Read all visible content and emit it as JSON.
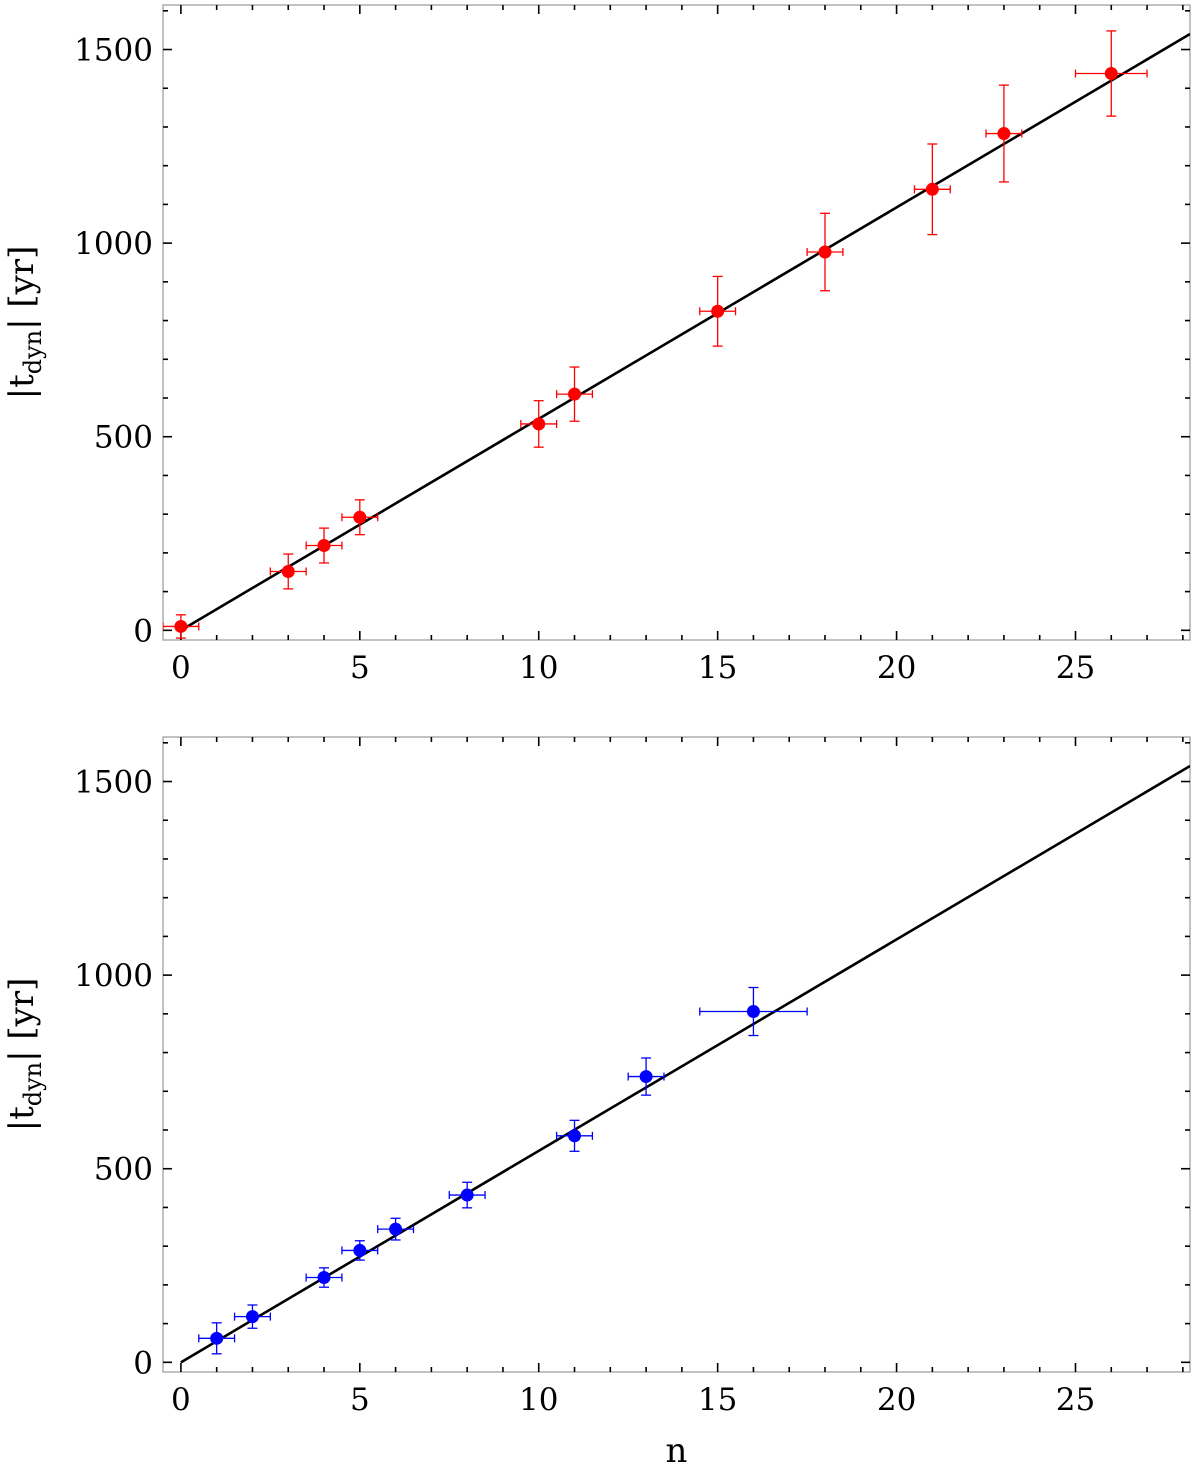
{
  "chart_data": [
    {
      "type": "scatter",
      "panel": "top",
      "title": "",
      "xlabel": "",
      "ylabel": "|t_dyn| [yr]",
      "ylabel_main": "|t",
      "ylabel_sub": "dyn",
      "ylabel_tail": "| [yr]",
      "xlim": [
        -0.5,
        28.2
      ],
      "ylim": [
        -25,
        1615
      ],
      "xticks": [
        0,
        5,
        10,
        15,
        20,
        25
      ],
      "xtick_labels": [
        "0",
        "5",
        "10",
        "15",
        "20",
        "25"
      ],
      "yticks": [
        0,
        500,
        1000,
        1500
      ],
      "ytick_labels": [
        "0",
        "500",
        "1000",
        "1500"
      ],
      "grid": false,
      "series": [
        {
          "color": "#ff0000",
          "x": [
            0,
            3,
            4,
            5,
            10,
            11,
            15,
            18,
            21,
            23,
            26
          ],
          "y": [
            10,
            152,
            219,
            292,
            533,
            610,
            824,
            977,
            1139,
            1283,
            1438
          ],
          "xerr": [
            0.5,
            0.5,
            0.5,
            0.5,
            0.5,
            0.5,
            0.5,
            0.5,
            0.5,
            0.5,
            1.0
          ],
          "yerr": [
            30,
            45,
            45,
            45,
            60,
            70,
            90,
            100,
            117,
            125,
            110
          ]
        }
      ],
      "fit_line": {
        "color": "#000000",
        "x": [
          0,
          28.2
        ],
        "y": [
          0,
          1540
        ]
      }
    },
    {
      "type": "scatter",
      "panel": "bottom",
      "title": "",
      "xlabel": "n",
      "ylabel": "|t_dyn| [yr]",
      "ylabel_main": "|t",
      "ylabel_sub": "dyn",
      "ylabel_tail": "| [yr]",
      "xlim": [
        -0.5,
        28.2
      ],
      "ylim": [
        -25,
        1615
      ],
      "xticks": [
        0,
        5,
        10,
        15,
        20,
        25
      ],
      "xtick_labels": [
        "0",
        "5",
        "10",
        "15",
        "20",
        "25"
      ],
      "yticks": [
        0,
        500,
        1000,
        1500
      ],
      "ytick_labels": [
        "0",
        "500",
        "1000",
        "1500"
      ],
      "grid": false,
      "series": [
        {
          "color": "#0000ff",
          "x": [
            1,
            2,
            4,
            5,
            6,
            8,
            11,
            13,
            16
          ],
          "y": [
            62,
            118,
            219,
            289,
            344,
            432,
            585,
            738,
            906
          ],
          "xerr": [
            0.5,
            0.5,
            0.5,
            0.5,
            0.5,
            0.5,
            0.5,
            0.5,
            1.5
          ],
          "yerr": [
            40,
            30,
            25,
            25,
            28,
            33,
            40,
            48,
            62
          ]
        }
      ],
      "fit_line": {
        "color": "#000000",
        "x": [
          0,
          28.2
        ],
        "y": [
          0,
          1540
        ]
      }
    }
  ]
}
